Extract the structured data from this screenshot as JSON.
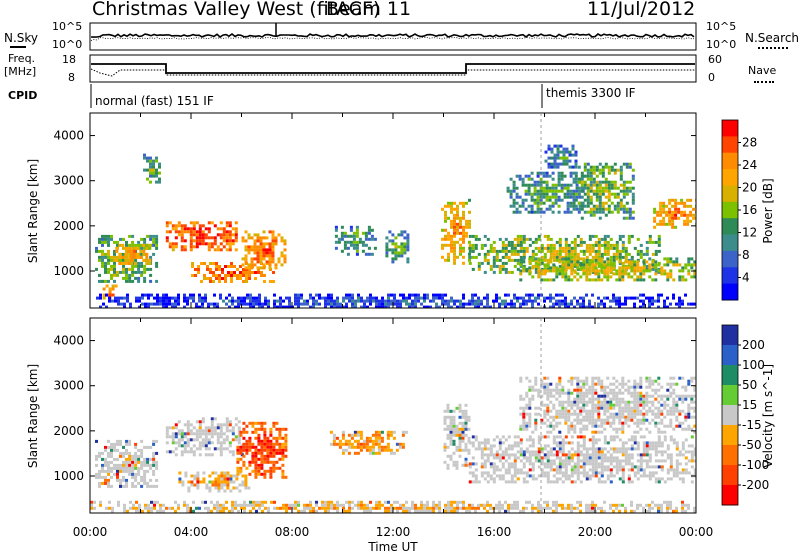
{
  "header": {
    "title": "Christmas Valley West (fitACF)",
    "beam": "Beam 11",
    "date": "11/Jul/2012"
  },
  "panels": {
    "nsky": {
      "left_label": "N.Sky",
      "right_label": "N.Search",
      "left_ticks": [
        "10^5",
        "10^0"
      ],
      "right_ticks": [
        "10^5",
        "10^0"
      ]
    },
    "freq": {
      "left_label_line1": "Freq.",
      "left_label_line2": "[MHz]",
      "right_label": "Nave",
      "left_ticks": [
        "18",
        "8"
      ],
      "right_ticks": [
        "60",
        "0"
      ]
    },
    "cpid": {
      "label": "CPID",
      "modes": [
        {
          "name": "normal (fast) 151 IF",
          "start_hour": 0,
          "end_hour": 18
        },
        {
          "name": "themis 3300 IF",
          "start_hour": 18,
          "end_hour": 24
        }
      ]
    }
  },
  "chart_data": [
    {
      "type": "heatmap",
      "parameter": "Power",
      "ylabel": "Slant Range [km]",
      "ylim": [
        180,
        4500
      ],
      "yticks": [
        1000,
        2000,
        3000,
        4000
      ],
      "xlim": [
        0,
        24
      ],
      "colorbar": {
        "label": "Power [dB]",
        "ticks": [
          "28",
          "24",
          "20",
          "16",
          "12",
          "8",
          "4"
        ],
        "colors": [
          "#ff0000",
          "#ff4500",
          "#ff8c00",
          "#ffa500",
          "#d8b000",
          "#7cc000",
          "#2e8b57",
          "#3c8c8c",
          "#3c64c8",
          "#1e32e6",
          "#0000ff"
        ]
      },
      "regions": [
        {
          "t0": 0.2,
          "t1": 2.6,
          "r0": 800,
          "r1": 1800,
          "level": 0.55
        },
        {
          "t0": 1.0,
          "t1": 2.4,
          "r0": 1200,
          "r1": 1600,
          "level": 0.8
        },
        {
          "t0": 0.5,
          "t1": 1.0,
          "r0": 400,
          "r1": 700,
          "level": 0.85
        },
        {
          "t0": 2.1,
          "t1": 2.8,
          "r0": 3000,
          "r1": 3600,
          "level": 0.5
        },
        {
          "t0": 3.0,
          "t1": 5.8,
          "r0": 1500,
          "r1": 2100,
          "level": 0.95
        },
        {
          "t0": 4.0,
          "t1": 7.3,
          "r0": 800,
          "r1": 1200,
          "level": 0.9
        },
        {
          "t0": 6.0,
          "t1": 7.7,
          "r0": 1100,
          "r1": 1900,
          "level": 0.85
        },
        {
          "t0": 9.7,
          "t1": 11.3,
          "r0": 1400,
          "r1": 2000,
          "level": 0.45
        },
        {
          "t0": 11.7,
          "t1": 12.6,
          "r0": 1200,
          "r1": 1900,
          "level": 0.45
        },
        {
          "t0": 13.9,
          "t1": 15.0,
          "r0": 1200,
          "r1": 2600,
          "level": 0.75
        },
        {
          "t0": 15.0,
          "t1": 22.5,
          "r0": 1000,
          "r1": 1800,
          "level": 0.6
        },
        {
          "t0": 17.0,
          "t1": 24.0,
          "r0": 800,
          "r1": 1300,
          "level": 0.65
        },
        {
          "t0": 16.5,
          "t1": 19.5,
          "r0": 2300,
          "r1": 3200,
          "level": 0.45
        },
        {
          "t0": 19.2,
          "t1": 21.5,
          "r0": 2200,
          "r1": 3400,
          "level": 0.55
        },
        {
          "t0": 22.3,
          "t1": 24.0,
          "r0": 2000,
          "r1": 2600,
          "level": 0.8
        },
        {
          "t0": 18.0,
          "t1": 19.2,
          "r0": 3300,
          "r1": 3800,
          "level": 0.4
        },
        {
          "t0": 0.0,
          "t1": 24.0,
          "r0": 200,
          "r1": 500,
          "level": 0.25
        }
      ]
    },
    {
      "type": "heatmap",
      "parameter": "Velocity",
      "ylabel": "Slant Range [km]",
      "ylim": [
        180,
        4500
      ],
      "yticks": [
        1000,
        2000,
        3000,
        4000
      ],
      "xlim": [
        0,
        24
      ],
      "xticks": [
        "00:00",
        "04:00",
        "08:00",
        "12:00",
        "16:00",
        "20:00",
        "00:00"
      ],
      "xlabel": "Time UT",
      "colorbar": {
        "label": "Velocity [m s^-1]",
        "ticks": [
          "200",
          "100",
          "50",
          "15",
          "-15",
          "-50",
          "-100",
          "-200"
        ],
        "colors": [
          "#2030a0",
          "#2a60c8",
          "#1e8c64",
          "#66cc33",
          "#c8c8c8",
          "#ffa500",
          "#ff7000",
          "#ff4000",
          "#ff0000"
        ]
      },
      "regions": [
        {
          "t0": 0.2,
          "t1": 2.6,
          "r0": 800,
          "r1": 1800,
          "level": 0.5
        },
        {
          "t0": 3.0,
          "t1": 6.0,
          "r0": 1500,
          "r1": 2300,
          "level": 0.45
        },
        {
          "t0": 3.5,
          "t1": 6.3,
          "r0": 700,
          "r1": 1100,
          "level": 0.65
        },
        {
          "t0": 5.8,
          "t1": 7.8,
          "r0": 1000,
          "r1": 2200,
          "level": 0.9
        },
        {
          "t0": 9.5,
          "t1": 12.5,
          "r0": 1500,
          "r1": 2000,
          "level": 0.72
        },
        {
          "t0": 14.0,
          "t1": 15.0,
          "r0": 1200,
          "r1": 2600,
          "level": 0.5
        },
        {
          "t0": 15.0,
          "t1": 24.0,
          "r0": 900,
          "r1": 1900,
          "level": 0.45
        },
        {
          "t0": 17.0,
          "t1": 24.0,
          "r0": 2000,
          "r1": 3200,
          "level": 0.45
        },
        {
          "t0": 0.0,
          "t1": 24.0,
          "r0": 200,
          "r1": 450,
          "level": 0.62
        }
      ]
    }
  ]
}
